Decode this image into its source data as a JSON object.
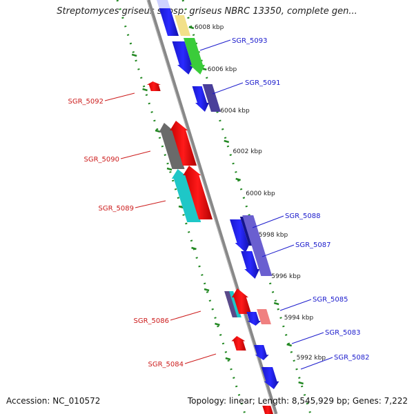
{
  "title": "Streptomyces griseus subsp. griseus NBRC 13350, complete gen...",
  "footer": {
    "accession": "Accession: NC_010572",
    "summary": "Topology: linear; Length: 8,545,929 bp; Genes: 7,222"
  },
  "ruler": [
    {
      "label": "6008 kbp",
      "kbp": 6008
    },
    {
      "label": "6006 kbp",
      "kbp": 6006
    },
    {
      "label": "6004 kbp",
      "kbp": 6004
    },
    {
      "label": "6002 kbp",
      "kbp": 6002
    },
    {
      "label": "6000 kbp",
      "kbp": 6000
    },
    {
      "label": "5998 kbp",
      "kbp": 5998
    },
    {
      "label": "5996 kbp",
      "kbp": 5996
    },
    {
      "label": "5994 kbp",
      "kbp": 5994
    },
    {
      "label": "5992 kbp",
      "kbp": 5992
    }
  ],
  "colors": {
    "plus_label": "#1a1acc",
    "minus_label": "#cc1a1a",
    "backbone": "#888888",
    "ruler": "#228822"
  },
  "gene_labels": [
    {
      "name": "SGR_5093",
      "strand": "plus"
    },
    {
      "name": "SGR_5091",
      "strand": "plus"
    },
    {
      "name": "SGR_5092",
      "strand": "minus"
    },
    {
      "name": "SGR_5090",
      "strand": "minus"
    },
    {
      "name": "SGR_5089",
      "strand": "minus"
    },
    {
      "name": "SGR_5088",
      "strand": "plus"
    },
    {
      "name": "SGR_5087",
      "strand": "plus"
    },
    {
      "name": "SGR_5085",
      "strand": "plus"
    },
    {
      "name": "SGR_5083",
      "strand": "plus"
    },
    {
      "name": "SGR_5082",
      "strand": "plus"
    },
    {
      "name": "SGR_5086",
      "strand": "minus"
    },
    {
      "name": "SGR_5084",
      "strand": "minus"
    }
  ]
}
